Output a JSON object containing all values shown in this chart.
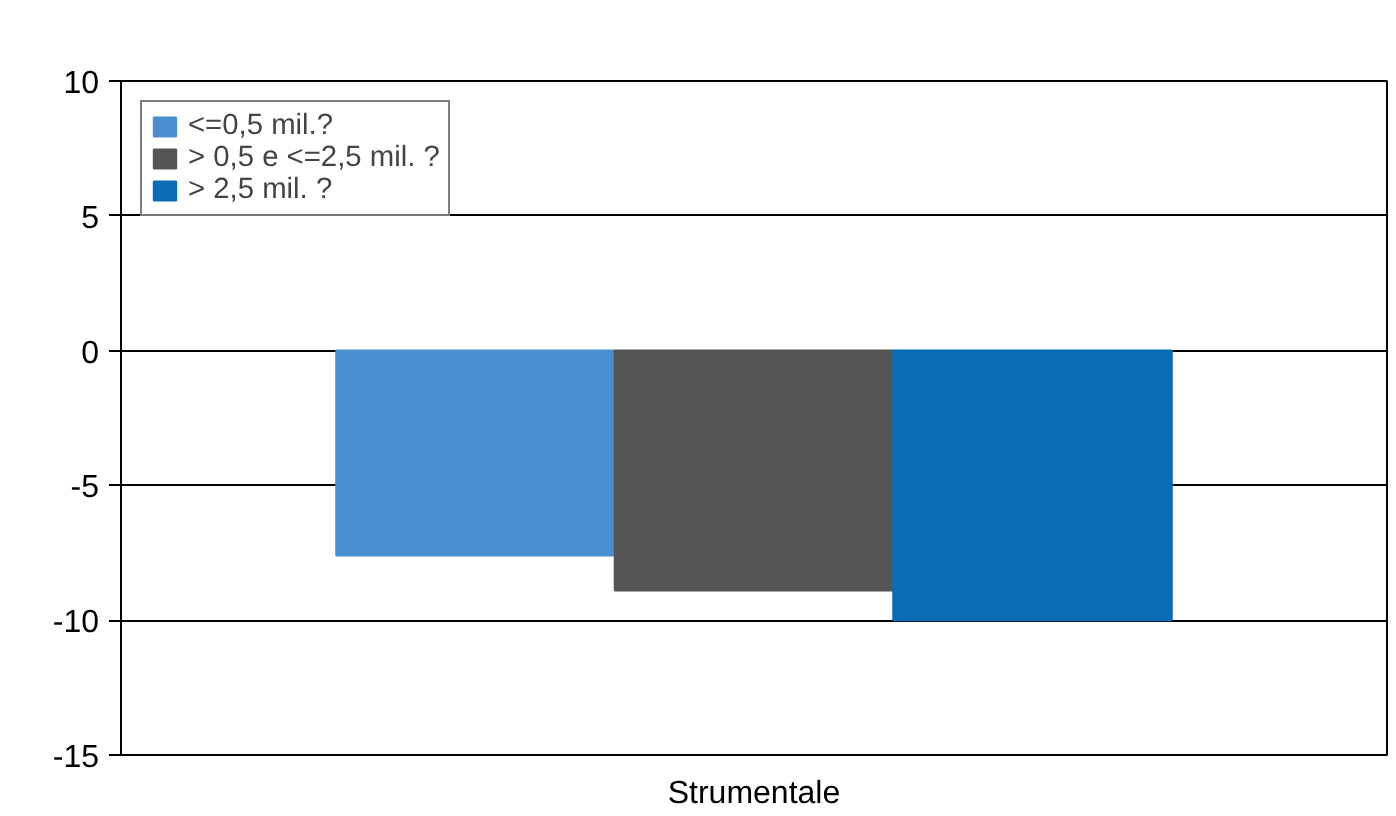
{
  "chart_data": {
    "type": "bar",
    "categories": [
      "Strumentale"
    ],
    "series": [
      {
        "name": "<=0,5 mil.?",
        "color": "#4a90d0",
        "values": [
          -7.6
        ]
      },
      {
        "name": "> 0,5 e <=2,5 mil. ?",
        "color": "#555555",
        "values": [
          -8.9
        ]
      },
      {
        "name": "> 2,5 mil. ?",
        "color": "#0a6cb4",
        "values": [
          -10
        ]
      }
    ],
    "ylim": [
      -15,
      10
    ],
    "yticks": [
      -15,
      -10,
      -5,
      0,
      5,
      10
    ],
    "grid": "y",
    "legend": "top left"
  }
}
